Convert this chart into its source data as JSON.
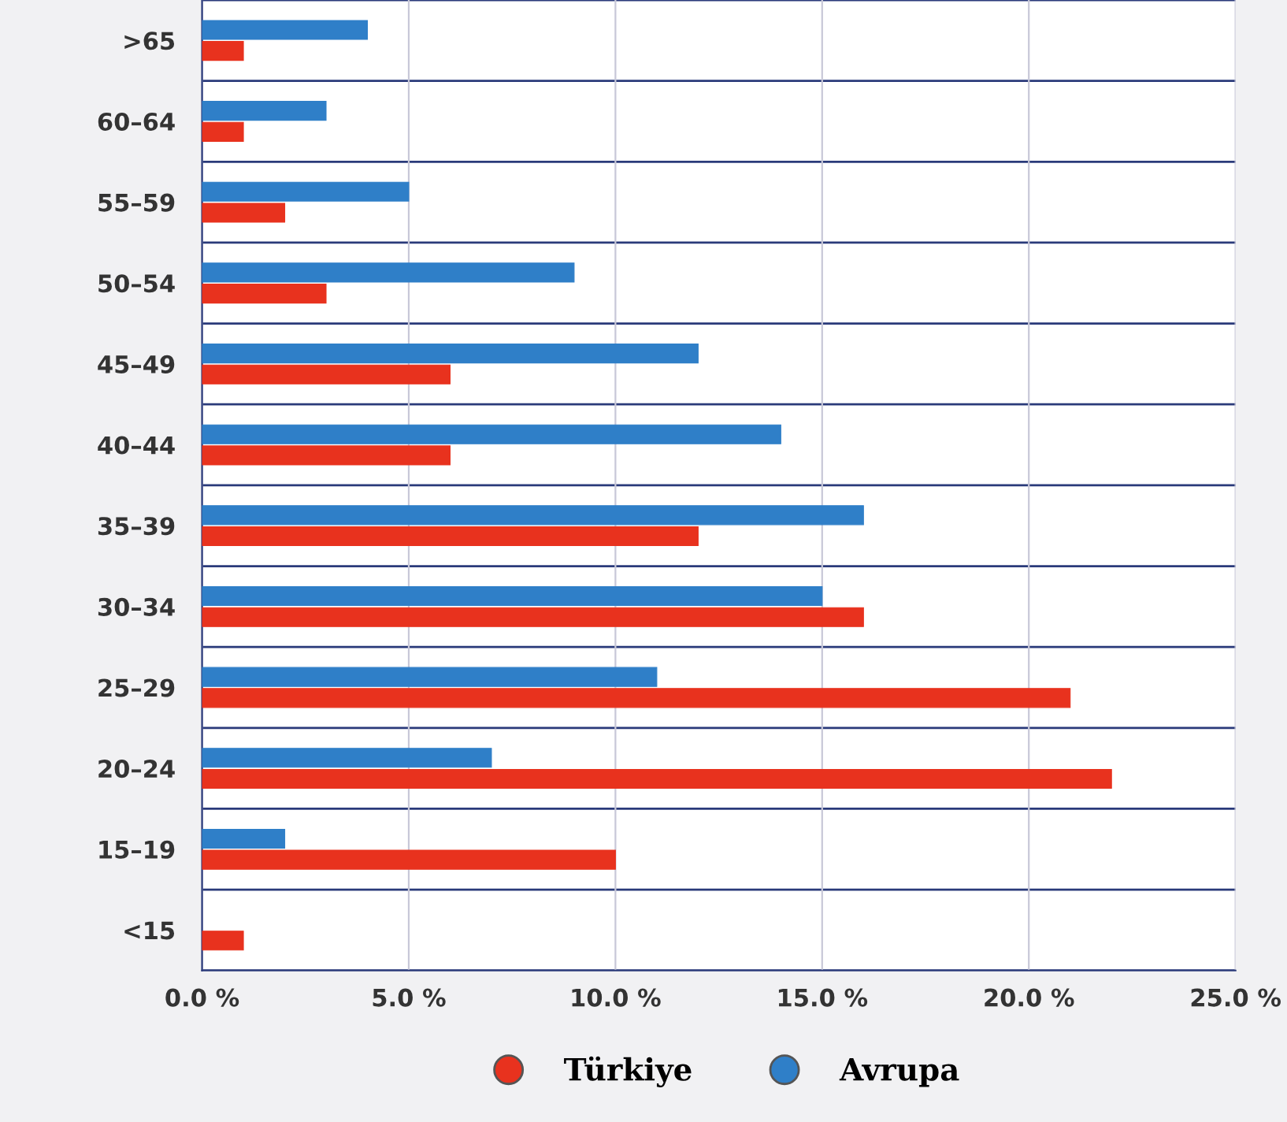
{
  "chart_data": {
    "type": "bar",
    "orientation": "horizontal",
    "categories": [
      ">65",
      "60–64",
      "55–59",
      "50–54",
      "45–49",
      "40–44",
      "35–39",
      "30–34",
      "25–29",
      "20–24",
      "15–19",
      "<15"
    ],
    "series": [
      {
        "name": "Avrupa",
        "color": "#2f7fc8",
        "values": [
          4,
          3,
          5,
          9,
          12,
          14,
          16,
          15,
          11,
          7,
          2,
          null
        ]
      },
      {
        "name": "Türkiye",
        "color": "#e8321e",
        "values": [
          1,
          1,
          2,
          3,
          6,
          6,
          12,
          16,
          21,
          22,
          10,
          1
        ]
      }
    ],
    "xlim": [
      0,
      25
    ],
    "xticks": [
      {
        "value": 0,
        "label": "0.0 %"
      },
      {
        "value": 5,
        "label": "5.0 %"
      },
      {
        "value": 10,
        "label": "10.0 %"
      },
      {
        "value": 15,
        "label": "15.0 %"
      },
      {
        "value": 20,
        "label": "20.0 %"
      },
      {
        "value": 25,
        "label": "25.0 %"
      }
    ],
    "grid": true,
    "legend": "bottom"
  }
}
